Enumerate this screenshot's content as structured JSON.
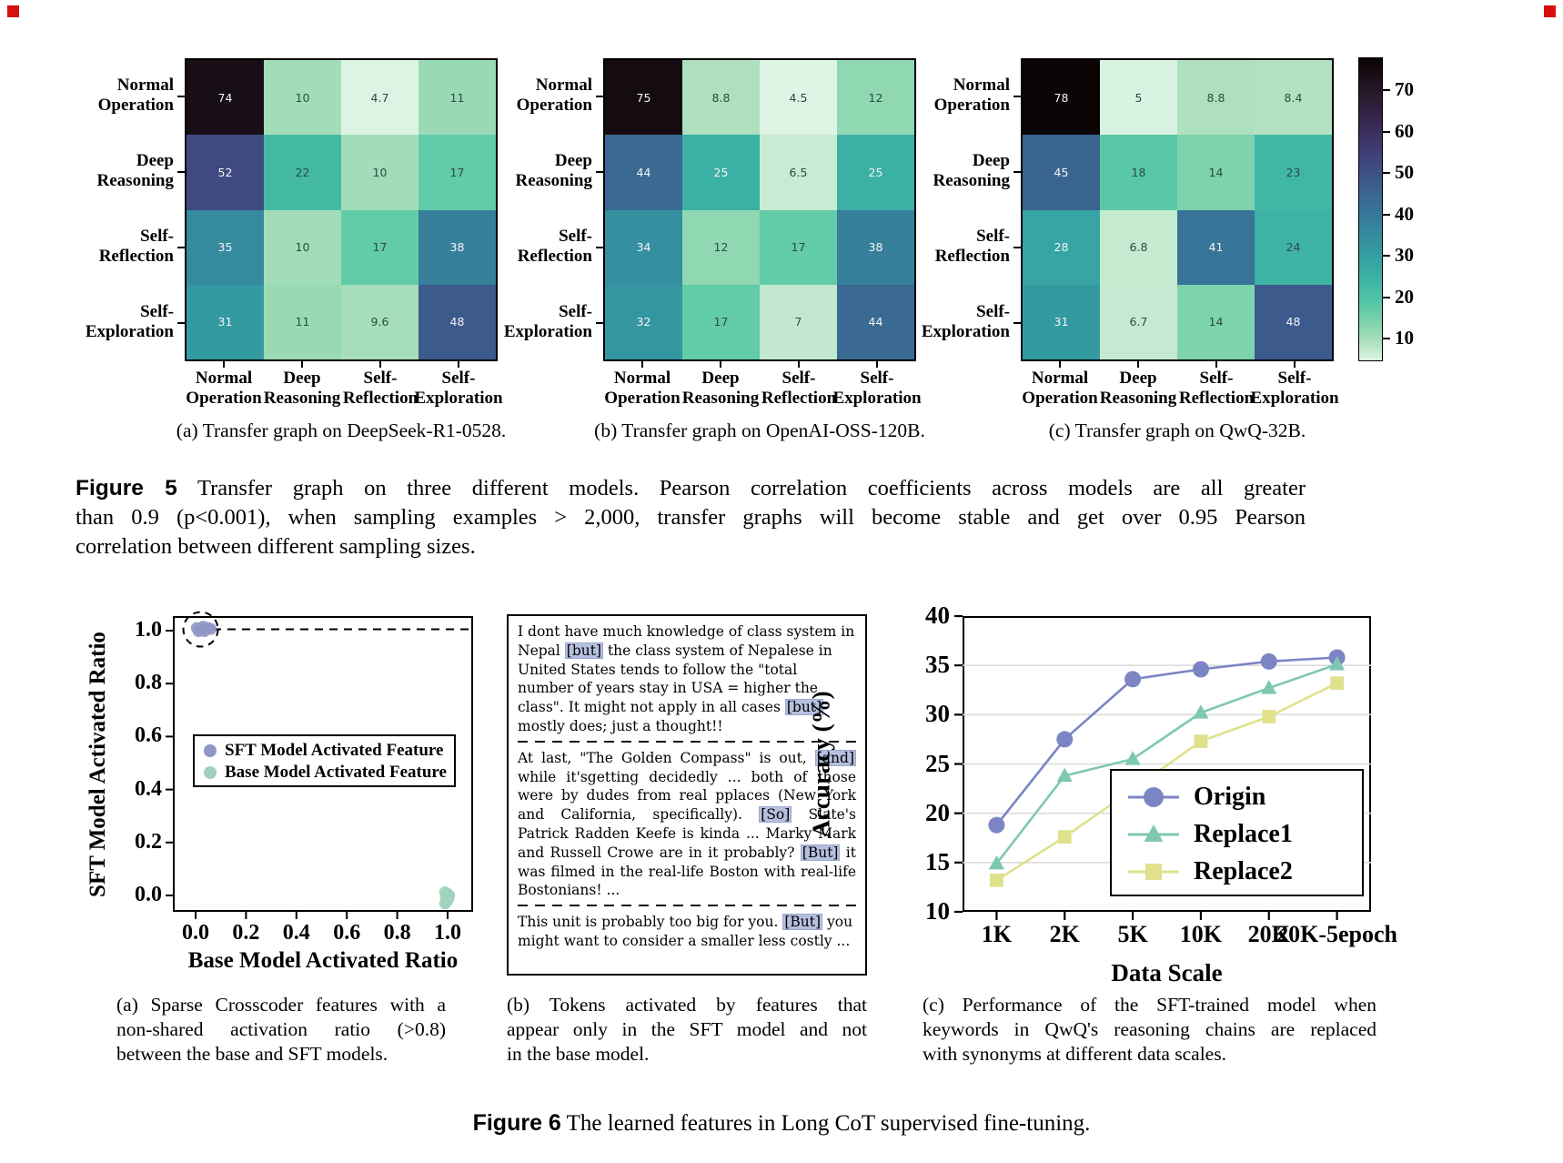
{
  "page": {
    "corner_marker_color": "#d60f0f"
  },
  "figure5": {
    "matrix_labels": {
      "rows": [
        [
          "Normal",
          "Operation"
        ],
        [
          "Deep",
          "Reasoning"
        ],
        [
          "Self-",
          "Reflection"
        ],
        [
          "Self-",
          "Exploration"
        ]
      ],
      "cols": [
        [
          "Normal",
          "Operation"
        ],
        [
          "Deep",
          "Reasoning"
        ],
        [
          "Self-",
          "Reflection"
        ],
        [
          "Self-",
          "Exploration"
        ]
      ]
    },
    "colorbar": {
      "ticks": [
        10,
        20,
        30,
        40,
        50,
        60,
        70
      ],
      "vmin": 4.5,
      "vmax": 78
    },
    "caption": {
      "label": "Figure 5",
      "line1": "Transfer graph on three different models.  Pearson correlation coefficients across models are all greater",
      "line2": "than 0.9 (p<0.001), when sampling examples > 2,000, transfer graphs will become stable and get over 0.95 Pearson",
      "line3": "correlation between different sampling sizes."
    }
  },
  "figure6": {
    "caption": {
      "label": "Figure 6",
      "text": "The learned features in Long CoT supervised fine-tuning."
    },
    "subcaptions": {
      "a": [
        "(a) Sparse Crosscoder features with a",
        "non-shared activation ratio (>0.8)",
        "between the base and SFT models."
      ],
      "b": [
        "(b) Tokens activated by features that",
        "appear only in the SFT model and not",
        "in the base model."
      ],
      "c": [
        "(c) Performance of the SFT-trained model when",
        "keywords in QwQ's reasoning chains are replaced",
        "with synonyms at different data scales."
      ]
    },
    "token_panel": {
      "paragraphs": [
        {
          "justified": false,
          "segments": [
            {
              "t": "I dont have much knowledge of class system in Nepal "
            },
            {
              "hl": "[but]"
            },
            {
              "t": " the class system of Nepalese in United States tends to follow the \"total number of years stay in USA = higher the class\". It might not apply in all cases "
            },
            {
              "hl": "[but]"
            },
            {
              "t": " mostly does; just a thought!!"
            }
          ]
        },
        {
          "justified": true,
          "segments": [
            {
              "t": "At last, \"The Golden Compass\" is out, "
            },
            {
              "hl": "[and]"
            },
            {
              "t": " while it'sgetting decidedly ... both of those were by dudes from real pplaces (New York and California, specifically). "
            },
            {
              "hl": "[So]"
            },
            {
              "t": " Slate's Patrick Radden Keefe is kinda ... Marky Mark and Russell Crowe are in it probably? "
            },
            {
              "hl": "[But]"
            },
            {
              "t": " it was filmed in the real-life Boston with real-life Bostonians! ..."
            }
          ]
        },
        {
          "justified": false,
          "segments": [
            {
              "t": "This unit is probably too big for you. "
            },
            {
              "hl": "[But]"
            },
            {
              "t": " you might want to consider a smaller less costly ..."
            }
          ]
        }
      ]
    }
  },
  "chart_data": [
    {
      "type": "heatmap",
      "id": "hm-deepseek",
      "title": "(a) Transfer graph on DeepSeek-R1-0528.",
      "rows": [
        "Normal Operation",
        "Deep Reasoning",
        "Self-Reflection",
        "Self-Exploration"
      ],
      "cols": [
        "Normal Operation",
        "Deep Reasoning",
        "Self-Reflection",
        "Self-Exploration"
      ],
      "values": [
        [
          74,
          10,
          4.7,
          11
        ],
        [
          52,
          22,
          10,
          17
        ],
        [
          35,
          10,
          17,
          38
        ],
        [
          31,
          11,
          9.6,
          48
        ]
      ],
      "vmin": 4.5,
      "vmax": 78,
      "colormap": "mako_r"
    },
    {
      "type": "heatmap",
      "id": "hm-openai",
      "title": "(b) Transfer graph on OpenAI-OSS-120B.",
      "rows": [
        "Normal Operation",
        "Deep Reasoning",
        "Self-Reflection",
        "Self-Exploration"
      ],
      "cols": [
        "Normal Operation",
        "Deep Reasoning",
        "Self-Reflection",
        "Self-Exploration"
      ],
      "values": [
        [
          75,
          8.8,
          4.5,
          12
        ],
        [
          44,
          25,
          6.5,
          25
        ],
        [
          34,
          12,
          17,
          38
        ],
        [
          32,
          17,
          7,
          44
        ]
      ],
      "vmin": 4.5,
      "vmax": 78,
      "colormap": "mako_r"
    },
    {
      "type": "heatmap",
      "id": "hm-qwq",
      "title": "(c) Transfer graph on QwQ-32B.",
      "rows": [
        "Normal Operation",
        "Deep Reasoning",
        "Self-Reflection",
        "Self-Exploration"
      ],
      "cols": [
        "Normal Operation",
        "Deep Reasoning",
        "Self-Reflection",
        "Self-Exploration"
      ],
      "values": [
        [
          78,
          5,
          8.8,
          8.4
        ],
        [
          45,
          18,
          14,
          23
        ],
        [
          28,
          6.8,
          41,
          24
        ],
        [
          31,
          6.7,
          14,
          48
        ]
      ],
      "vmin": 4.5,
      "vmax": 78,
      "colormap": "mako_r"
    },
    {
      "type": "scatter",
      "id": "crosscoder-scatter",
      "xlabel": "Base Model Activated Ratio",
      "ylabel": "SFT Model Activated Ratio",
      "xlim": [
        -0.09,
        1.1
      ],
      "ylim": [
        -0.08,
        1.12
      ],
      "xticks": [
        "0.0",
        "0.2",
        "0.4",
        "0.6",
        "0.8",
        "1.0"
      ],
      "yticks": [
        "0.0",
        "0.2",
        "0.4",
        "0.6",
        "0.8",
        "1.0"
      ],
      "legend_position": "center-left",
      "series": [
        {
          "name": "SFT Model Activated Feature",
          "color": "#8f97c6",
          "points": [
            [
              0.005,
              1.01
            ],
            [
              0.03,
              1.015
            ],
            [
              0.05,
              1.01
            ],
            [
              0.012,
              0.998
            ],
            [
              0.035,
              0.998
            ],
            [
              0.02,
              1.005
            ],
            [
              0.06,
              1.006
            ]
          ]
        },
        {
          "name": "Base Model Activated Feature",
          "color": "#9fd1bc",
          "points": [
            [
              0.99,
              0.012
            ],
            [
              1.0,
              0.006
            ],
            [
              0.993,
              -0.004
            ],
            [
              1.003,
              -0.012
            ],
            [
              0.996,
              -0.022
            ],
            [
              1.006,
              0.0
            ],
            [
              0.99,
              -0.03
            ],
            [
              1.0,
              -0.018
            ]
          ]
        }
      ],
      "annotations": {
        "dashed_circle_at": [
          0.02,
          1.005
        ],
        "dashed_hline_y": 1.005
      }
    },
    {
      "type": "line",
      "id": "sft-accuracy",
      "xlabel": "Data Scale",
      "ylabel": "Accuracy (%)",
      "ylim": [
        10,
        40
      ],
      "yticks": [
        10,
        15,
        20,
        25,
        30,
        35,
        40
      ],
      "categories": [
        "1K",
        "2K",
        "5K",
        "10K",
        "20K",
        "20K-5epoch"
      ],
      "grid": "horizontal",
      "legend_position": "lower-right",
      "series": [
        {
          "name": "Origin",
          "marker": "circle",
          "color": "#7b85c4",
          "values": [
            18.8,
            27.5,
            33.6,
            34.6,
            35.4,
            35.8
          ]
        },
        {
          "name": "Replace1",
          "marker": "triangle",
          "color": "#7ec7b2",
          "values": [
            14.9,
            23.8,
            25.5,
            30.2,
            32.7,
            35.1
          ]
        },
        {
          "name": "Replace2",
          "marker": "square",
          "color": "#dfe18c",
          "values": [
            13.2,
            17.6,
            22.4,
            27.3,
            29.8,
            33.2
          ]
        }
      ]
    }
  ]
}
